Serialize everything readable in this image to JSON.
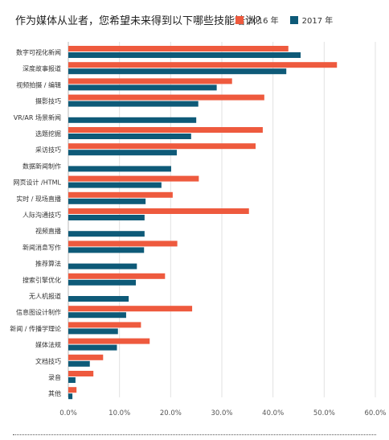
{
  "title": "作为媒体从业者，您希望未来得到以下哪些技能培训？",
  "chart_data": {
    "type": "bar",
    "orientation": "horizontal",
    "categories": [
      "数字可视化新闻",
      "深度故事报道",
      "视频拍摄 / 编辑",
      "摄影技巧",
      "VR/AR 场景新闻",
      "选题挖掘",
      "采访技巧",
      "数据新闻制作",
      "网页设计 /HTML",
      "实时 / 现场直播",
      "人际沟通技巧",
      "视频直播",
      "新闻消息写作",
      "推荐算法",
      "搜索引擎优化",
      "无人机报道",
      "信息图设计制作",
      "新闻 / 传播学理论",
      "媒体法规",
      "文档技巧",
      "录音",
      "其他"
    ],
    "series": [
      {
        "name": "2016 年",
        "color": "#EE5A3E",
        "values": [
          43.0,
          52.5,
          32.0,
          38.3,
          null,
          38.0,
          36.6,
          null,
          25.5,
          20.4,
          35.3,
          null,
          21.3,
          null,
          18.9,
          null,
          24.2,
          14.2,
          15.9,
          6.8,
          4.9,
          1.6
        ]
      },
      {
        "name": "2017 年",
        "color": "#0E5A78",
        "values": [
          45.4,
          42.6,
          29.0,
          25.4,
          25.0,
          24.0,
          21.2,
          20.1,
          18.2,
          15.1,
          14.9,
          14.9,
          14.8,
          13.4,
          13.2,
          11.8,
          11.3,
          9.7,
          9.5,
          4.2,
          1.4,
          0.8
        ]
      }
    ],
    "xlim": [
      0,
      60
    ],
    "xticks": [
      "0.0%",
      "10.0%",
      "20.0%",
      "30.0%",
      "40.0%",
      "50.0%",
      "60.0%"
    ],
    "grid": true,
    "legend": "top-right"
  }
}
